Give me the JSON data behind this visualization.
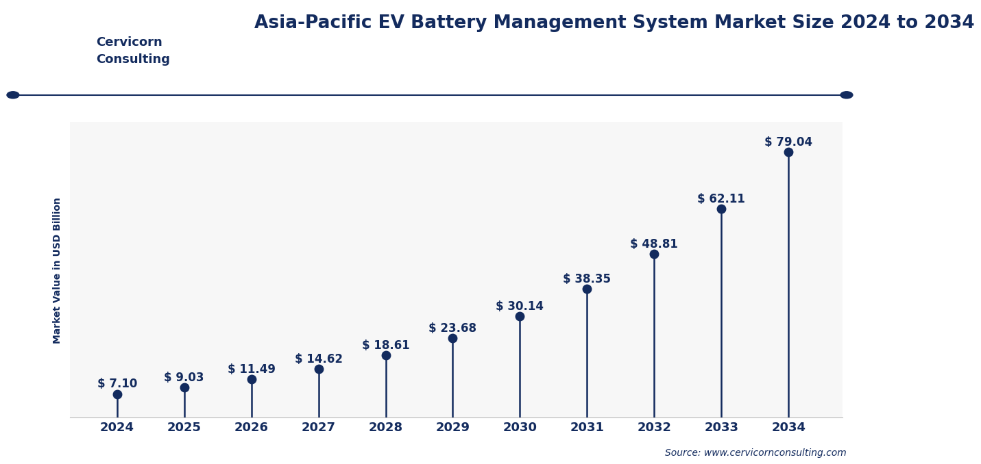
{
  "title": "Asia-Pacific EV Battery Management System Market Size 2024 to 2034",
  "years": [
    2024,
    2025,
    2026,
    2027,
    2028,
    2029,
    2030,
    2031,
    2032,
    2033,
    2034
  ],
  "values": [
    7.1,
    9.03,
    11.49,
    14.62,
    18.61,
    23.68,
    30.14,
    38.35,
    48.81,
    62.11,
    79.04
  ],
  "ylabel": "Market Value in USD Billion",
  "source": "Source: www.cervicornconsulting.com",
  "dot_color": "#132B5E",
  "line_color": "#132B5E",
  "bg_color": "#FFFFFF",
  "plot_bg_color": "#F7F7F7",
  "title_color": "#132B5E",
  "label_color": "#132B5E",
  "grid_color": "#DDDDDD",
  "axis_label_color": "#132B5E",
  "tick_color": "#132B5E",
  "separator_color": "#132B5E",
  "ylim": [
    0,
    88
  ],
  "title_fontsize": 19,
  "label_fontsize": 10,
  "tick_fontsize": 13,
  "value_fontsize": 12,
  "source_fontsize": 10,
  "logo_bg": "#132B5E",
  "logo_text_color": "#FFFFFF",
  "company_name": "Cervicorn\nConsulting"
}
